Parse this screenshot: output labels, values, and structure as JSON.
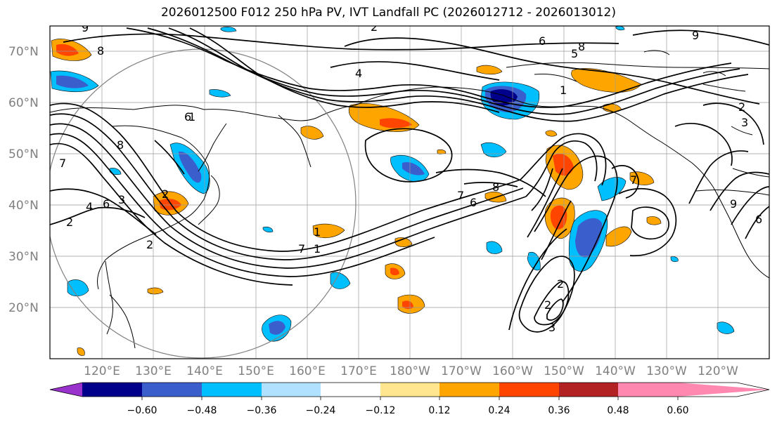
{
  "title": "2026012500 F012 250 hPa PV, IVT Landfall PC (2026012712 - 2026013012)",
  "lat_labels": [
    "70°N",
    "60°N",
    "50°N",
    "40°N",
    "30°N",
    "20°N"
  ],
  "lon_labels": [
    "120°E",
    "130°E",
    "140°E",
    "150°E",
    "160°E",
    "170°E",
    "180°W",
    "170°W",
    "160°W",
    "150°W",
    "140°W",
    "130°W",
    "120°W"
  ],
  "colorbar": {
    "colors": [
      "#9932cc",
      "#00008b",
      "#3a5fcd",
      "#00bfff",
      "#b0e2ff",
      "#ffffff",
      "#ffe68f",
      "#ffa500",
      "#ff4500",
      "#b22222",
      "#ff88b0"
    ],
    "ticks": [
      "−0.60",
      "−0.48",
      "−0.36",
      "−0.24",
      "−0.12",
      "0.12",
      "0.24",
      "0.36",
      "0.48",
      "0.60"
    ]
  },
  "contour_labels": [
    "9",
    "8",
    "2",
    "4",
    "1",
    "6",
    "8",
    "7",
    "4",
    "6",
    "2",
    "3",
    "2",
    "2",
    "7",
    "1",
    "6",
    "1",
    "5",
    "8",
    "7",
    "6",
    "9",
    "2",
    "3",
    "3",
    "2",
    "2",
    "8",
    "7",
    "1",
    "9",
    "6"
  ]
}
